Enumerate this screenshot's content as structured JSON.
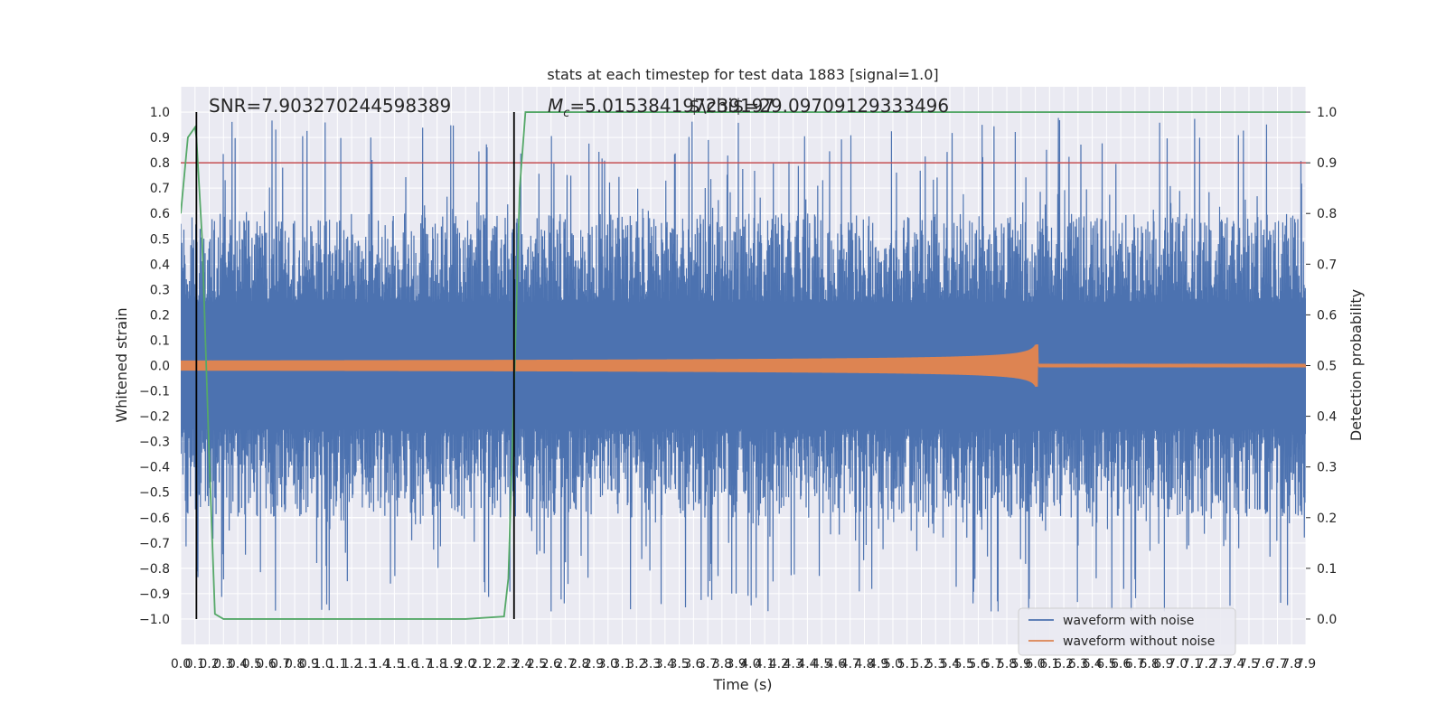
{
  "chart_data": {
    "type": "line",
    "title": "stats at each timestep for test data 1883 [signal=1.0]",
    "xlabel": "Time (s)",
    "ylabel_left": "Whitened strain",
    "ylabel_right": "Detection probability",
    "xlim": [
      0.0,
      7.9
    ],
    "ylim_left": [
      -1.1,
      1.1
    ],
    "ylim_right": [
      -0.05,
      1.05
    ],
    "x_ticks": [
      "0.0",
      "0.1",
      "0.2",
      "0.3",
      "0.4",
      "0.5",
      "0.6",
      "0.7",
      "0.8",
      "0.9",
      "1.0",
      "1.1",
      "1.2",
      "1.3",
      "1.4",
      "1.5",
      "1.6",
      "1.7",
      "1.8",
      "1.9",
      "2.0",
      "2.1",
      "2.2",
      "2.3",
      "2.4",
      "2.5",
      "2.6",
      "2.7",
      "2.8",
      "2.9",
      "3.0",
      "3.1",
      "3.2",
      "3.3",
      "3.4",
      "3.5",
      "3.6",
      "3.7",
      "3.8",
      "3.9",
      "4.0",
      "4.1",
      "4.2",
      "4.3",
      "4.4",
      "4.5",
      "4.6",
      "4.7",
      "4.8",
      "4.9",
      "5.0",
      "5.1",
      "5.2",
      "5.3",
      "5.4",
      "5.5",
      "5.6",
      "5.7",
      "5.8",
      "5.9",
      "6.0",
      "6.1",
      "6.2",
      "6.3",
      "6.4",
      "6.5",
      "6.6",
      "6.7",
      "6.8",
      "6.9",
      "7.0",
      "7.1",
      "7.2",
      "7.3",
      "7.4",
      "7.5",
      "7.6",
      "7.7",
      "7.8",
      "7.9"
    ],
    "y_ticks_left": [
      "1.0",
      "0.9",
      "0.8",
      "0.7",
      "0.6",
      "0.5",
      "0.4",
      "0.3",
      "0.2",
      "0.1",
      "0.0",
      "−0.1",
      "−0.2",
      "−0.3",
      "−0.4",
      "−0.5",
      "−0.6",
      "−0.7",
      "−0.8",
      "−0.9",
      "−1.0"
    ],
    "y_ticks_right": [
      "1.0",
      "0.9",
      "0.8",
      "0.7",
      "0.6",
      "0.5",
      "0.4",
      "0.3",
      "0.2",
      "0.1",
      "0.0"
    ],
    "threshold_right": 0.9,
    "event_markers_x": [
      0.11,
      2.34
    ],
    "series": [
      {
        "name": "waveform with noise",
        "color": "#4c72b0",
        "kind": "noise",
        "amplitude_envelope": [
          -0.97,
          0.99
        ]
      },
      {
        "name": "waveform without noise",
        "color": "#dd8452",
        "kind": "chirp",
        "merger_time": 6.02,
        "start_amplitude": 0.02,
        "peak_amplitude": 0.19
      },
      {
        "name": "detection probability",
        "color": "#55a868",
        "axis": "right",
        "x": [
          0.0,
          0.05,
          0.1,
          0.11,
          0.15,
          0.2,
          0.24,
          0.3,
          1.0,
          1.5,
          2.0,
          2.27,
          2.3,
          2.34,
          2.38,
          2.42,
          2.5,
          7.9
        ],
        "y": [
          0.8,
          0.95,
          0.97,
          0.95,
          0.75,
          0.32,
          0.01,
          0.0,
          0.0,
          0.0,
          0.0,
          0.005,
          0.08,
          0.45,
          0.85,
          1.0,
          1.0,
          1.0
        ]
      }
    ],
    "annotations": [
      {
        "text": "SNR=7.903270244598389"
      },
      {
        "text_math": "M",
        "text_sub": "c",
        "text_rest": "=5.015384197239197"
      },
      {
        "text": "$\\chi$=29.09709129333496"
      }
    ],
    "legend": {
      "placement": "lower-right",
      "entries": [
        "waveform with noise",
        "waveform without noise"
      ]
    }
  }
}
